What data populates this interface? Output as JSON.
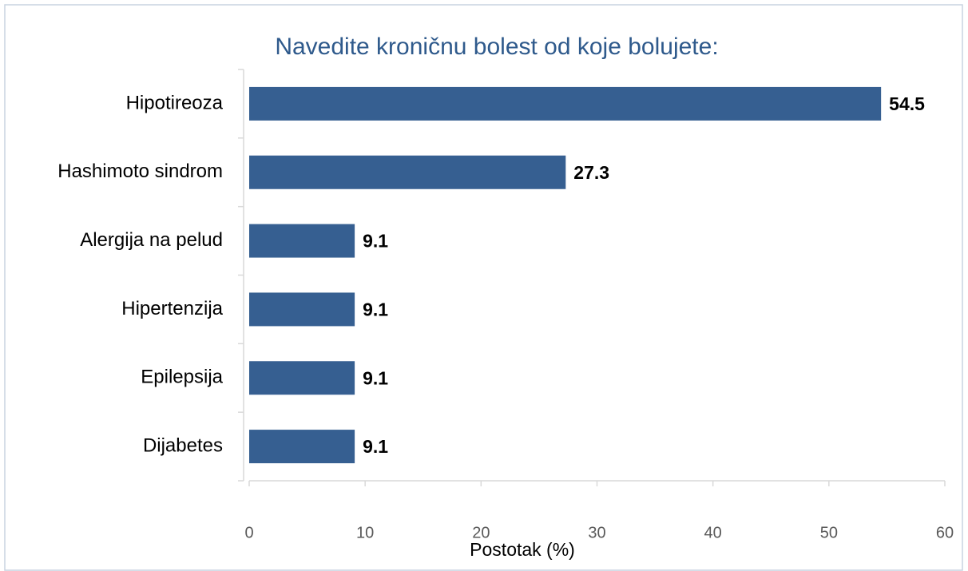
{
  "chart_data": {
    "type": "bar",
    "orientation": "horizontal",
    "title": "Navedite kroničnu bolest od koje bolujete:",
    "x_label": "Postotak (%)",
    "categories": [
      "Hipotireoza",
      "Hashimoto sindrom",
      "Alergija na pelud",
      "Hipertenzija",
      "Epilepsija",
      "Dijabetes"
    ],
    "values": [
      54.5,
      27.3,
      9.1,
      9.1,
      9.1,
      9.1
    ],
    "color": "#365f91",
    "xlim": [
      0,
      60
    ],
    "xticks": [
      0,
      10,
      20,
      30,
      40,
      50,
      60
    ],
    "grid": false
  }
}
